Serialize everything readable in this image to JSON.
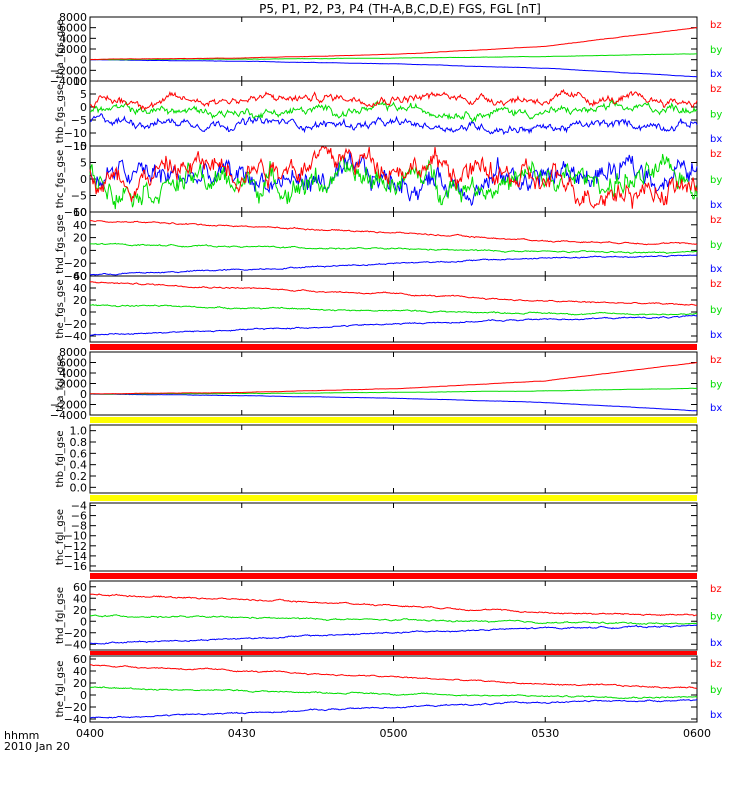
{
  "figure": {
    "title": "P5, P1, P2, P3, P4 (TH-A,B,C,D,E) FGS, FGL [nT]",
    "xaxis_label_line1": "hhmm",
    "xaxis_label_line2": "2010 Jan 20",
    "xticks": [
      "0400",
      "0430",
      "0500",
      "0530",
      "0600"
    ],
    "colors": {
      "bx": "#0000ff",
      "by": "#00dd00",
      "bz": "#ff0000",
      "bar_red": "#ff0000",
      "bar_yellow": "#ffff00"
    }
  },
  "chart_data": [
    {
      "type": "line",
      "panel": "tha_fgs_gse",
      "ylabel": "tha_fgs_gse",
      "ylim": [
        -4000,
        8000
      ],
      "yticks": [
        "8000",
        "6000",
        "4000",
        "2000",
        "0",
        "−2000",
        "−4000"
      ],
      "ytick_values": [
        8000,
        6000,
        4000,
        2000,
        0,
        -2000,
        -4000
      ],
      "x": [
        "04:00",
        "04:30",
        "05:00",
        "05:30",
        "06:00"
      ],
      "series": [
        {
          "name": "bx",
          "values": [
            -20,
            -300,
            -800,
            -1600,
            -3200
          ]
        },
        {
          "name": "by",
          "values": [
            10,
            100,
            300,
            600,
            1100
          ]
        },
        {
          "name": "bz",
          "values": [
            30,
            300,
            1000,
            2500,
            6000
          ]
        }
      ]
    },
    {
      "type": "line",
      "panel": "thb_fgs_gse",
      "ylabel": "thb_fgs_gse",
      "ylim": [
        -15,
        10
      ],
      "yticks": [
        "10",
        "5",
        "0",
        "−5",
        "−10",
        "−15"
      ],
      "ytick_values": [
        10,
        5,
        0,
        -5,
        -10,
        -15
      ],
      "x": [
        "04:00",
        "04:30",
        "05:00",
        "05:30",
        "06:00"
      ],
      "series": [
        {
          "name": "bx",
          "values": [
            -5,
            -6,
            -7,
            -8,
            -6
          ]
        },
        {
          "name": "by",
          "values": [
            -1,
            -2,
            -1,
            -2,
            0
          ]
        },
        {
          "name": "bz",
          "values": [
            2,
            3,
            4,
            3,
            2
          ]
        }
      ]
    },
    {
      "type": "line",
      "panel": "thc_fgs_gse",
      "ylabel": "thc_fgs_gse",
      "ylim": [
        -10,
        10
      ],
      "yticks": [
        "10",
        "5",
        "0",
        "−5",
        "−10"
      ],
      "ytick_values": [
        10,
        5,
        0,
        -5,
        -10
      ],
      "x": [
        "04:00",
        "04:30",
        "05:00",
        "05:30",
        "06:00"
      ],
      "series": [
        {
          "name": "bx",
          "values": [
            1,
            0,
            -1,
            1,
            2
          ]
        },
        {
          "name": "by",
          "values": [
            0,
            -1,
            0,
            -1,
            0
          ]
        },
        {
          "name": "bz",
          "values": [
            0,
            5,
            6,
            -2,
            -3
          ]
        }
      ]
    },
    {
      "type": "line",
      "panel": "thd_fgs_gse",
      "ylabel": "thd_fgs_gse",
      "ylim": [
        -40,
        60
      ],
      "yticks": [
        "60",
        "40",
        "20",
        "0",
        "−20",
        "−40"
      ],
      "ytick_values": [
        60,
        40,
        20,
        0,
        -20,
        -40
      ],
      "x": [
        "04:00",
        "04:30",
        "05:00",
        "05:30",
        "06:00"
      ],
      "series": [
        {
          "name": "bx",
          "values": [
            -38,
            -30,
            -20,
            -12,
            -8
          ]
        },
        {
          "name": "by",
          "values": [
            10,
            6,
            2,
            -2,
            -4
          ]
        },
        {
          "name": "bz",
          "values": [
            47,
            38,
            28,
            15,
            10
          ]
        }
      ]
    },
    {
      "type": "line",
      "panel": "the_fgs_gse",
      "ylabel": "the_fgs_gse",
      "ylim": [
        -50,
        60
      ],
      "yticks": [
        "60",
        "40",
        "20",
        "0",
        "−20",
        "−40"
      ],
      "ytick_values": [
        60,
        40,
        20,
        0,
        -20,
        -40
      ],
      "x": [
        "04:00",
        "04:30",
        "05:00",
        "05:30",
        "06:00"
      ],
      "series": [
        {
          "name": "bx",
          "values": [
            -38,
            -30,
            -20,
            -12,
            -8
          ]
        },
        {
          "name": "by",
          "values": [
            12,
            7,
            2,
            -2,
            -4
          ]
        },
        {
          "name": "bz",
          "values": [
            50,
            40,
            30,
            18,
            12
          ]
        }
      ]
    },
    {
      "type": "line",
      "panel": "tha_fgl_gse",
      "ylabel": "tha_fgl_gse",
      "ylim": [
        -4000,
        8000
      ],
      "yticks": [
        "8000",
        "6000",
        "4000",
        "2000",
        "0",
        "−2000",
        "−4000"
      ],
      "ytick_values": [
        8000,
        6000,
        4000,
        2000,
        0,
        -2000,
        -4000
      ],
      "x": [
        "04:00",
        "04:30",
        "05:00",
        "05:30",
        "06:00"
      ],
      "series": [
        {
          "name": "bx",
          "values": [
            -20,
            -300,
            -800,
            -1600,
            -3200
          ]
        },
        {
          "name": "by",
          "values": [
            10,
            100,
            300,
            600,
            1100
          ]
        },
        {
          "name": "bz",
          "values": [
            30,
            300,
            1000,
            2500,
            6000
          ]
        }
      ]
    },
    {
      "type": "line",
      "panel": "thb_fgl_gse",
      "ylabel": "thb_fgl_gse",
      "ylim": [
        -0.1,
        1.1
      ],
      "yticks": [
        "1.0",
        "0.8",
        "0.6",
        "0.4",
        "0.2",
        "0.0"
      ],
      "ytick_values": [
        1.0,
        0.8,
        0.6,
        0.4,
        0.2,
        0.0
      ],
      "series": []
    },
    {
      "type": "line",
      "panel": "thc_fgl_gse",
      "ylabel": "thc_fgl_gse",
      "ylim": [
        -17,
        -3.5
      ],
      "yticks": [
        "−4",
        "−6",
        "−8",
        "−10",
        "−12",
        "−14",
        "−16"
      ],
      "ytick_values": [
        -4,
        -6,
        -8,
        -10,
        -12,
        -14,
        -16
      ],
      "series": []
    },
    {
      "type": "line",
      "panel": "thd_fgl_gse",
      "ylabel": "thd_fgl_gse",
      "ylim": [
        -50,
        70
      ],
      "yticks": [
        "60",
        "40",
        "20",
        "0",
        "−20",
        "−40"
      ],
      "ytick_values": [
        60,
        40,
        20,
        0,
        -20,
        -40
      ],
      "x": [
        "04:00",
        "04:30",
        "05:00",
        "05:30",
        "06:00"
      ],
      "series": [
        {
          "name": "bx",
          "values": [
            -38,
            -30,
            -20,
            -12,
            -8
          ]
        },
        {
          "name": "by",
          "values": [
            10,
            6,
            2,
            -2,
            -4
          ]
        },
        {
          "name": "bz",
          "values": [
            47,
            38,
            28,
            15,
            10
          ]
        }
      ]
    },
    {
      "type": "line",
      "panel": "the_fgl_gse",
      "ylabel": "the_fgl_gse",
      "ylim": [
        -45,
        65
      ],
      "yticks": [
        "60",
        "40",
        "20",
        "0",
        "−20",
        "−40"
      ],
      "ytick_values": [
        60,
        40,
        20,
        0,
        -20,
        -40
      ],
      "x": [
        "04:00",
        "04:30",
        "05:00",
        "05:30",
        "06:00"
      ],
      "series": [
        {
          "name": "bx",
          "values": [
            -38,
            -30,
            -20,
            -12,
            -8
          ]
        },
        {
          "name": "by",
          "values": [
            12,
            7,
            2,
            -2,
            -4
          ]
        },
        {
          "name": "bz",
          "values": [
            50,
            40,
            30,
            18,
            12
          ]
        }
      ]
    }
  ],
  "status_bars": [
    {
      "after_panel": "the_fgs_gse",
      "color": "red"
    },
    {
      "after_panel": "tha_fgl_gse",
      "color": "yellow"
    },
    {
      "after_panel": "thb_fgl_gse",
      "color": "yellow"
    },
    {
      "after_panel": "thc_fgl_gse",
      "color": "red"
    },
    {
      "after_panel": "thd_fgl_gse",
      "color": "red"
    }
  ]
}
